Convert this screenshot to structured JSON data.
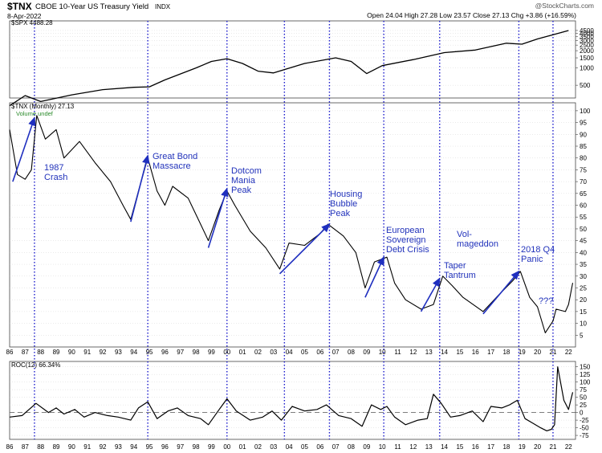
{
  "header": {
    "symbol": "$TNX",
    "name": "CBOE 10-Year US Treasury Yield",
    "index_tag": "INDX",
    "date": "8-Apr-2022",
    "ohlc": "Open 24.04   High 27.28   Low 23.57   Close 27.13   Chg +3.86 (+16.59%)",
    "watermark": "@StockCharts.com"
  },
  "spx_panel": {
    "label": "$SPX 4488.28",
    "y_ticks": [
      500,
      1000,
      1500,
      2000,
      2500,
      3000,
      3500,
      4000,
      4500
    ],
    "x": [
      1986,
      1987,
      1988,
      1990,
      1992,
      1994,
      1995,
      1996,
      1998,
      1999,
      2000,
      2001,
      2002,
      2003,
      2005,
      2007,
      2008,
      2009,
      2010,
      2012,
      2014,
      2016,
      2018,
      2019,
      2020,
      2021,
      2022
    ],
    "values": [
      220,
      330,
      260,
      340,
      420,
      460,
      470,
      620,
      1000,
      1300,
      1450,
      1200,
      880,
      820,
      1200,
      1500,
      1300,
      800,
      1100,
      1400,
      1850,
      2050,
      2700,
      2600,
      3200,
      3800,
      4488
    ]
  },
  "tnx_panel": {
    "label": "$TNX (Monthly) 27.13",
    "sublabel": "Volume undef",
    "y_ticks": [
      5,
      10,
      15,
      20,
      25,
      30,
      35,
      40,
      45,
      50,
      55,
      60,
      65,
      70,
      75,
      80,
      85,
      90,
      95,
      100
    ],
    "x": [
      1986.0,
      1986.5,
      1987.0,
      1987.4,
      1987.75,
      1988.3,
      1989.0,
      1989.5,
      1990.5,
      1991.5,
      1992.5,
      1993.3,
      1993.8,
      1994.3,
      1994.9,
      1995.5,
      1996.0,
      1996.5,
      1997.5,
      1998.3,
      1998.8,
      1999.5,
      2000.0,
      2000.5,
      2001.5,
      2002.5,
      2003.4,
      2004.0,
      2005.0,
      2006.0,
      2006.5,
      2007.5,
      2008.3,
      2008.9,
      2009.5,
      2010.3,
      2010.8,
      2011.5,
      2012.5,
      2013.3,
      2013.9,
      2014.5,
      2015.2,
      2016.5,
      2017.5,
      2018.4,
      2018.9,
      2019.5,
      2020.0,
      2020.5,
      2021.0,
      2021.2,
      2021.8,
      2022.0,
      2022.27
    ],
    "values": [
      92,
      73,
      71,
      75,
      98,
      88,
      92,
      80,
      87,
      78,
      70,
      60,
      54,
      66,
      80,
      66,
      60,
      68,
      63,
      52,
      45,
      58,
      66,
      60,
      49,
      42,
      33,
      44,
      43,
      48,
      52,
      47,
      40,
      25,
      36,
      38,
      27,
      20,
      16,
      18,
      30,
      26,
      21,
      15,
      22,
      28,
      32,
      21,
      17,
      6,
      11,
      16,
      15,
      18,
      27.13
    ]
  },
  "roc_panel": {
    "label": "ROC(12) 66.34%",
    "y_ticks": [
      -75,
      -50,
      -25,
      0,
      25,
      50,
      75,
      100,
      125,
      150
    ],
    "x": [
      1986.0,
      1986.8,
      1987.7,
      1988.5,
      1989.0,
      1989.5,
      1990.2,
      1990.8,
      1991.5,
      1992.3,
      1993.0,
      1993.8,
      1994.3,
      1994.9,
      1995.5,
      1996.2,
      1996.8,
      1997.5,
      1998.3,
      1998.8,
      1999.5,
      2000.0,
      2000.6,
      2001.5,
      2002.3,
      2002.9,
      2003.5,
      2004.2,
      2005.0,
      2005.8,
      2006.4,
      2007.2,
      2008.0,
      2008.7,
      2009.3,
      2009.9,
      2010.3,
      2010.8,
      2011.5,
      2012.3,
      2012.9,
      2013.3,
      2013.8,
      2014.4,
      2015.0,
      2015.8,
      2016.5,
      2017.0,
      2017.7,
      2018.2,
      2018.7,
      2019.2,
      2019.7,
      2020.2,
      2020.6,
      2020.9,
      2021.1,
      2021.3,
      2021.7,
      2022.0,
      2022.27
    ],
    "values": [
      -15,
      -10,
      30,
      0,
      15,
      -5,
      10,
      -15,
      0,
      -10,
      -15,
      -25,
      15,
      35,
      -20,
      5,
      15,
      -10,
      -20,
      -40,
      10,
      45,
      5,
      -25,
      -15,
      5,
      -25,
      20,
      5,
      10,
      25,
      -10,
      -20,
      -45,
      25,
      10,
      20,
      -15,
      -40,
      -25,
      -20,
      60,
      30,
      -15,
      -10,
      5,
      -30,
      20,
      15,
      25,
      40,
      -20,
      -35,
      -50,
      -60,
      -55,
      -40,
      150,
      40,
      10,
      66.34
    ]
  },
  "x_axis_labels": [
    "86",
    "87",
    "88",
    "89",
    "90",
    "91",
    "92",
    "93",
    "94",
    "95",
    "96",
    "97",
    "98",
    "99",
    "00",
    "01",
    "02",
    "03",
    "04",
    "05",
    "06",
    "07",
    "08",
    "09",
    "10",
    "11",
    "12",
    "13",
    "14",
    "15",
    "16",
    "17",
    "18",
    "19",
    "20",
    "21",
    "22"
  ],
  "event_lines": [
    1987.6,
    1994.9,
    2000.0,
    2003.7,
    2006.6,
    2010.1,
    2013.7,
    2018.8,
    2021.0
  ],
  "annotations": [
    {
      "lines": [
        "1987",
        "Crash"
      ]
    },
    {
      "lines": [
        "Great Bond",
        "Massacre"
      ]
    },
    {
      "lines": [
        "Dotcom",
        "Mania",
        "Peak"
      ]
    },
    {
      "lines": [
        "Housing",
        "Bubble",
        "Peak"
      ]
    },
    {
      "lines": [
        "European",
        "Sovereign",
        "Debt Crisis"
      ]
    },
    {
      "lines": [
        "Taper",
        "Tantrum"
      ]
    },
    {
      "lines": [
        "Vol-",
        "mageddon"
      ]
    },
    {
      "lines": [
        "2018 Q4",
        "Panic"
      ]
    },
    {
      "lines": [
        "???"
      ]
    }
  ],
  "arrows": [
    {
      "from": [
        1986.2,
        70
      ],
      "to": [
        1987.6,
        97
      ]
    },
    {
      "from": [
        1993.8,
        53
      ],
      "to": [
        1994.9,
        81
      ]
    },
    {
      "from": [
        1998.8,
        42
      ],
      "to": [
        2000.0,
        67
      ]
    },
    {
      "from": [
        2003.4,
        31
      ],
      "to": [
        2006.6,
        52
      ]
    },
    {
      "from": [
        2008.9,
        21
      ],
      "to": [
        2010.1,
        38
      ]
    },
    {
      "from": [
        2012.5,
        15
      ],
      "to": [
        2013.7,
        29
      ]
    },
    {
      "from": [
        2016.5,
        14
      ],
      "to": [
        2018.8,
        32
      ]
    }
  ],
  "colors": {
    "line": "#000000",
    "annotation": "#2233bb",
    "event_line": "#1a1acc",
    "arrow": "#1f2fbf",
    "grid": "#cccccc",
    "vol_label": "#2a8a2a"
  }
}
